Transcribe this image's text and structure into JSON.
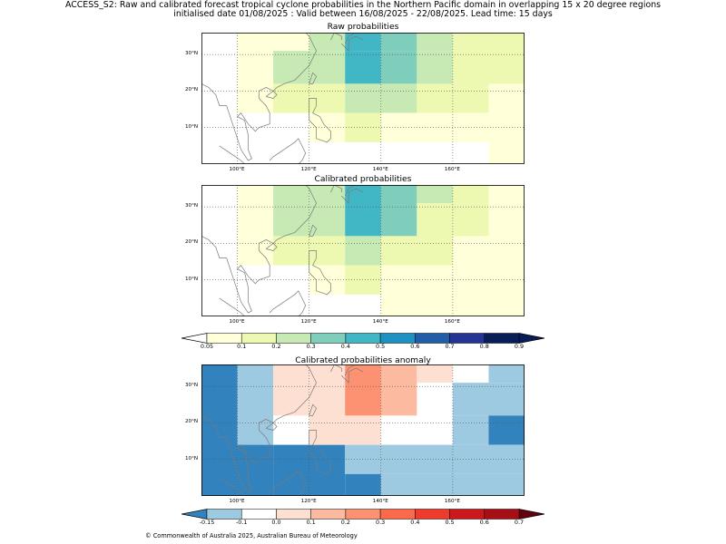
{
  "header": {
    "line1": "ACCESS_S2: Raw and calibrated forecast tropical cyclone probabilities in the Northern Pacific domain in overlapping 15 x 20 degree regions",
    "line2": "initialised date 01/08/2025 :  Valid between 16/08/2025 - 22/08/2025. Lead time: 15 days"
  },
  "axes": {
    "lon_ticks": [
      "100°E",
      "120°E",
      "140°E",
      "160°E"
    ],
    "lat_ticks": [
      "30°N",
      "20°N",
      "10°N"
    ],
    "lon_range": [
      90,
      180
    ],
    "lat_range": [
      0,
      36
    ]
  },
  "panels": [
    {
      "id": "raw",
      "title": "Raw probabilities",
      "cells": [
        {
          "lon": [
            110,
            120
          ],
          "lat": [
            31,
            36
          ],
          "color": "#ffffd9"
        },
        {
          "lon": [
            120,
            130
          ],
          "lat": [
            31,
            36
          ],
          "color": "#c7e9b4"
        },
        {
          "lon": [
            130,
            140
          ],
          "lat": [
            31,
            36
          ],
          "color": "#41b6c4"
        },
        {
          "lon": [
            140,
            150
          ],
          "lat": [
            31,
            36
          ],
          "color": "#7fcdbb"
        },
        {
          "lon": [
            150,
            160
          ],
          "lat": [
            31,
            36
          ],
          "color": "#c7e9b4"
        },
        {
          "lon": [
            160,
            170
          ],
          "lat": [
            31,
            36
          ],
          "color": "#edf8b1"
        },
        {
          "lon": [
            170,
            180
          ],
          "lat": [
            31,
            36
          ],
          "color": "#edf8b1"
        },
        {
          "lon": [
            100,
            110
          ],
          "lat": [
            22,
            36
          ],
          "color": "#ffffd9"
        },
        {
          "lon": [
            110,
            120
          ],
          "lat": [
            22,
            31
          ],
          "color": "#c7e9b4"
        },
        {
          "lon": [
            120,
            130
          ],
          "lat": [
            22,
            31
          ],
          "color": "#c7e9b4"
        },
        {
          "lon": [
            130,
            140
          ],
          "lat": [
            22,
            31
          ],
          "color": "#41b6c4"
        },
        {
          "lon": [
            140,
            150
          ],
          "lat": [
            22,
            31
          ],
          "color": "#7fcdbb"
        },
        {
          "lon": [
            150,
            160
          ],
          "lat": [
            22,
            31
          ],
          "color": "#c7e9b4"
        },
        {
          "lon": [
            160,
            180
          ],
          "lat": [
            22,
            31
          ],
          "color": "#edf8b1"
        },
        {
          "lon": [
            100,
            110
          ],
          "lat": [
            14,
            22
          ],
          "color": "#ffffd9"
        },
        {
          "lon": [
            110,
            120
          ],
          "lat": [
            14,
            22
          ],
          "color": "#edf8b1"
        },
        {
          "lon": [
            120,
            130
          ],
          "lat": [
            14,
            22
          ],
          "color": "#edf8b1"
        },
        {
          "lon": [
            130,
            150
          ],
          "lat": [
            14,
            22
          ],
          "color": "#c7e9b4"
        },
        {
          "lon": [
            150,
            170
          ],
          "lat": [
            14,
            22
          ],
          "color": "#edf8b1"
        },
        {
          "lon": [
            170,
            180
          ],
          "lat": [
            14,
            22
          ],
          "color": "#ffffd9"
        },
        {
          "lon": [
            120,
            130
          ],
          "lat": [
            6,
            14
          ],
          "color": "#ffffd9"
        },
        {
          "lon": [
            130,
            140
          ],
          "lat": [
            6,
            14
          ],
          "color": "#edf8b1"
        },
        {
          "lon": [
            140,
            180
          ],
          "lat": [
            6,
            14
          ],
          "color": "#ffffd9"
        },
        {
          "lon": [
            170,
            180
          ],
          "lat": [
            0,
            6
          ],
          "color": "#ffffd9"
        }
      ]
    },
    {
      "id": "cal",
      "title": "Calibrated probabilities",
      "cells": [
        {
          "lon": [
            100,
            110
          ],
          "lat": [
            22,
            36
          ],
          "color": "#ffffd9"
        },
        {
          "lon": [
            110,
            120
          ],
          "lat": [
            22,
            36
          ],
          "color": "#c7e9b4"
        },
        {
          "lon": [
            120,
            130
          ],
          "lat": [
            22,
            36
          ],
          "color": "#c7e9b4"
        },
        {
          "lon": [
            130,
            140
          ],
          "lat": [
            22,
            36
          ],
          "color": "#41b6c4"
        },
        {
          "lon": [
            140,
            150
          ],
          "lat": [
            22,
            36
          ],
          "color": "#7fcdbb"
        },
        {
          "lon": [
            150,
            160
          ],
          "lat": [
            31,
            36
          ],
          "color": "#c7e9b4"
        },
        {
          "lon": [
            160,
            170
          ],
          "lat": [
            31,
            36
          ],
          "color": "#edf8b1"
        },
        {
          "lon": [
            170,
            180
          ],
          "lat": [
            31,
            36
          ],
          "color": "#ffffd9"
        },
        {
          "lon": [
            150,
            170
          ],
          "lat": [
            22,
            31
          ],
          "color": "#edf8b1"
        },
        {
          "lon": [
            170,
            180
          ],
          "lat": [
            22,
            31
          ],
          "color": "#ffffd9"
        },
        {
          "lon": [
            100,
            110
          ],
          "lat": [
            14,
            22
          ],
          "color": "#ffffd9"
        },
        {
          "lon": [
            110,
            130
          ],
          "lat": [
            14,
            22
          ],
          "color": "#edf8b1"
        },
        {
          "lon": [
            130,
            140
          ],
          "lat": [
            14,
            22
          ],
          "color": "#c7e9b4"
        },
        {
          "lon": [
            140,
            160
          ],
          "lat": [
            14,
            22
          ],
          "color": "#edf8b1"
        },
        {
          "lon": [
            160,
            170
          ],
          "lat": [
            14,
            22
          ],
          "color": "#ffffd9"
        },
        {
          "lon": [
            170,
            180
          ],
          "lat": [
            14,
            22
          ],
          "color": "#ffffd9"
        },
        {
          "lon": [
            120,
            130
          ],
          "lat": [
            6,
            14
          ],
          "color": "#ffffd9"
        },
        {
          "lon": [
            130,
            140
          ],
          "lat": [
            6,
            14
          ],
          "color": "#edf8b1"
        },
        {
          "lon": [
            140,
            180
          ],
          "lat": [
            6,
            14
          ],
          "color": "#ffffd9"
        },
        {
          "lon": [
            140,
            180
          ],
          "lat": [
            0,
            6
          ],
          "color": "#ffffd9"
        }
      ]
    },
    {
      "id": "anom",
      "title": "Calibrated probabilities anomaly",
      "cells": [
        {
          "lon": [
            90,
            100
          ],
          "lat": [
            0,
            36
          ],
          "color": "#3182bd"
        },
        {
          "lon": [
            100,
            110
          ],
          "lat": [
            14,
            36
          ],
          "color": "#9ecae1"
        },
        {
          "lon": [
            100,
            110
          ],
          "lat": [
            0,
            14
          ],
          "color": "#3182bd"
        },
        {
          "lon": [
            110,
            120
          ],
          "lat": [
            22,
            36
          ],
          "color": "#fee0d2"
        },
        {
          "lon": [
            110,
            120
          ],
          "lat": [
            14,
            22
          ],
          "color": "#ffffff"
        },
        {
          "lon": [
            110,
            130
          ],
          "lat": [
            0,
            14
          ],
          "color": "#3182bd"
        },
        {
          "lon": [
            120,
            130
          ],
          "lat": [
            22,
            36
          ],
          "color": "#fee0d2"
        },
        {
          "lon": [
            130,
            140
          ],
          "lat": [
            22,
            36
          ],
          "color": "#fc9272"
        },
        {
          "lon": [
            140,
            150
          ],
          "lat": [
            22,
            36
          ],
          "color": "#fcbba1"
        },
        {
          "lon": [
            150,
            160
          ],
          "lat": [
            31,
            36
          ],
          "color": "#fee0d2"
        },
        {
          "lon": [
            120,
            140
          ],
          "lat": [
            14,
            22
          ],
          "color": "#fee0d2"
        },
        {
          "lon": [
            140,
            170
          ],
          "lat": [
            14,
            22
          ],
          "color": "#ffffff"
        },
        {
          "lon": [
            170,
            180
          ],
          "lat": [
            31,
            36
          ],
          "color": "#9ecae1"
        },
        {
          "lon": [
            160,
            180
          ],
          "lat": [
            22,
            31
          ],
          "color": "#9ecae1"
        },
        {
          "lon": [
            160,
            170
          ],
          "lat": [
            14,
            22
          ],
          "color": "#9ecae1"
        },
        {
          "lon": [
            170,
            180
          ],
          "lat": [
            14,
            22
          ],
          "color": "#3182bd"
        },
        {
          "lon": [
            130,
            180
          ],
          "lat": [
            6,
            14
          ],
          "color": "#9ecae1"
        },
        {
          "lon": [
            130,
            140
          ],
          "lat": [
            0,
            6
          ],
          "color": "#3182bd"
        },
        {
          "lon": [
            140,
            180
          ],
          "lat": [
            0,
            6
          ],
          "color": "#9ecae1"
        }
      ]
    }
  ],
  "colorbar_prob": {
    "labels": [
      "0.05",
      "0.1",
      "0.2",
      "0.3",
      "0.4",
      "0.5",
      "0.6",
      "0.7",
      "0.8",
      "0.9"
    ],
    "colors": [
      "#ffffd9",
      "#edf8b1",
      "#c7e9b4",
      "#7fcdbb",
      "#41b6c4",
      "#1d91c0",
      "#225ea8",
      "#253494",
      "#081d58"
    ],
    "under_color": "#ffffff",
    "over_color": "#081d58"
  },
  "colorbar_anom": {
    "labels": [
      "-0.15",
      "-0.1",
      "0.0",
      "0.1",
      "0.2",
      "0.3",
      "0.4",
      "0.5",
      "0.6",
      "0.7"
    ],
    "colors": [
      "#9ecae1",
      "#ffffff",
      "#fee0d2",
      "#fcbba1",
      "#fc9272",
      "#fb6a4a",
      "#ef3b2c",
      "#cb181d",
      "#a50f15"
    ],
    "under_color": "#3182bd",
    "over_color": "#67000d"
  },
  "footer": {
    "copyright": "© Commonwealth of Australia 2025, Australian Bureau of Meteorology"
  }
}
